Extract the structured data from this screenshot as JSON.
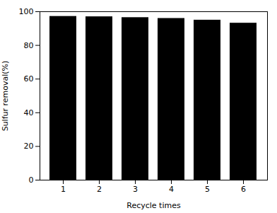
{
  "chart_data": {
    "type": "bar",
    "categories": [
      1,
      2,
      3,
      4,
      5,
      6
    ],
    "values": [
      97.2,
      97.0,
      96.5,
      96.0,
      95.0,
      93.2
    ],
    "xlabel": "Recycle times",
    "ylabel": "Sulfur removal(%)",
    "ylim": [
      0,
      100
    ],
    "yticks": [
      0,
      20,
      40,
      60,
      80,
      100
    ],
    "xticks": [
      1,
      2,
      3,
      4,
      5,
      6
    ]
  }
}
